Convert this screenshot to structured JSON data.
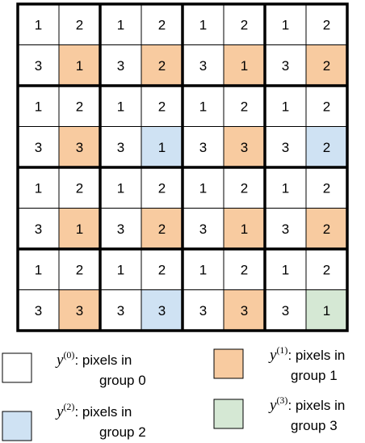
{
  "grid": {
    "rows": [
      [
        "1",
        "2",
        "1",
        "2",
        "1",
        "2",
        "1",
        "2"
      ],
      [
        "3",
        "1",
        "3",
        "2",
        "3",
        "1",
        "3",
        "2"
      ],
      [
        "1",
        "2",
        "1",
        "2",
        "1",
        "2",
        "1",
        "2"
      ],
      [
        "3",
        "3",
        "3",
        "1",
        "3",
        "3",
        "3",
        "2"
      ],
      [
        "1",
        "2",
        "1",
        "2",
        "1",
        "2",
        "1",
        "2"
      ],
      [
        "3",
        "1",
        "3",
        "2",
        "3",
        "1",
        "3",
        "2"
      ],
      [
        "1",
        "2",
        "1",
        "2",
        "1",
        "2",
        "1",
        "2"
      ],
      [
        "3",
        "3",
        "3",
        "3",
        "3",
        "3",
        "3",
        "1"
      ]
    ],
    "fills": [
      [
        "#ffffff",
        "#ffffff",
        "#ffffff",
        "#ffffff",
        "#ffffff",
        "#ffffff",
        "#ffffff",
        "#ffffff"
      ],
      [
        "#ffffff",
        "#f8cba0",
        "#ffffff",
        "#f8cba0",
        "#ffffff",
        "#f8cba0",
        "#ffffff",
        "#f8cba0"
      ],
      [
        "#ffffff",
        "#ffffff",
        "#ffffff",
        "#ffffff",
        "#ffffff",
        "#ffffff",
        "#ffffff",
        "#ffffff"
      ],
      [
        "#ffffff",
        "#f8cba0",
        "#ffffff",
        "#cfe2f3",
        "#ffffff",
        "#f8cba0",
        "#ffffff",
        "#cfe2f3"
      ],
      [
        "#ffffff",
        "#ffffff",
        "#ffffff",
        "#ffffff",
        "#ffffff",
        "#ffffff",
        "#ffffff",
        "#ffffff"
      ],
      [
        "#ffffff",
        "#f8cba0",
        "#ffffff",
        "#f8cba0",
        "#ffffff",
        "#f8cba0",
        "#ffffff",
        "#f8cba0"
      ],
      [
        "#ffffff",
        "#ffffff",
        "#ffffff",
        "#ffffff",
        "#ffffff",
        "#ffffff",
        "#ffffff",
        "#ffffff"
      ],
      [
        "#ffffff",
        "#f8cba0",
        "#ffffff",
        "#cfe2f3",
        "#ffffff",
        "#f8cba0",
        "#ffffff",
        "#d5e8d4"
      ]
    ]
  },
  "legend": [
    {
      "symbol": "y",
      "superscript": "(0)",
      "text": ": pixels in",
      "line2": "group 0",
      "color": "#ffffff"
    },
    {
      "symbol": "y",
      "superscript": "(1)",
      "text": ": pixels in",
      "line2": "group 1",
      "color": "#f8cba0"
    },
    {
      "symbol": "y",
      "superscript": "(2)",
      "text": ": pixels in",
      "line2": "group 2",
      "color": "#cfe2f3"
    },
    {
      "symbol": "y",
      "superscript": "(3)",
      "text": ": pixels in",
      "line2": "group 3",
      "color": "#d5e8d4"
    }
  ]
}
